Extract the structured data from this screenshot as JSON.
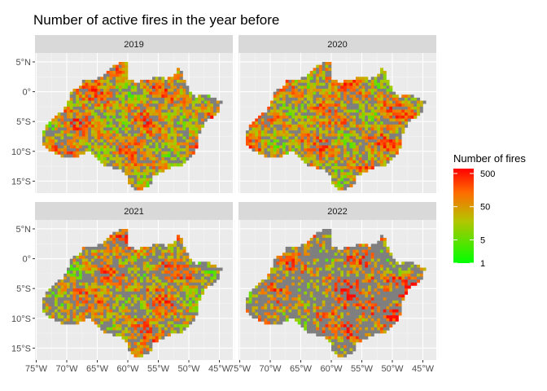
{
  "chart_data": {
    "type": "heatmap",
    "title": "Number of active fires in the year before",
    "xlabel": "",
    "ylabel": "",
    "facets": [
      "2019",
      "2020",
      "2021",
      "2022"
    ],
    "x_ticks": [
      -75,
      -70,
      -65,
      -60,
      -55,
      -50,
      -45
    ],
    "x_tick_labels": [
      "75°W",
      "70°W",
      "65°W",
      "60°W",
      "55°W",
      "50°W",
      "45°W"
    ],
    "y_ticks": [
      5,
      0,
      -5,
      -10,
      -15
    ],
    "y_tick_labels": [
      "5°N",
      "0°",
      "5°S",
      "10°S",
      "15°S"
    ],
    "xlim": [
      -75.2,
      -42.8
    ],
    "ylim": [
      -17,
      6.5
    ],
    "grid": true,
    "legend": {
      "title": "Number of fires",
      "position": "right",
      "scale": "log",
      "breaks": [
        500,
        50,
        5,
        1
      ],
      "break_labels": [
        "500",
        "50",
        "5",
        "1"
      ],
      "colors": [
        "#00ff00",
        "#c8c000",
        "#ff6600",
        "#ff0000"
      ],
      "no_fire_color": "#7f7f7f"
    }
  }
}
